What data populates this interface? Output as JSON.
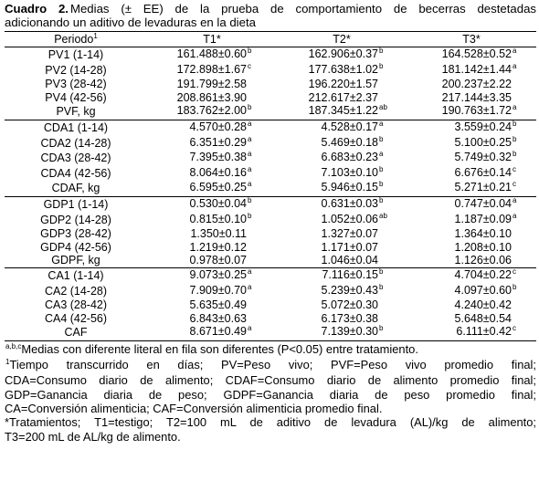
{
  "caption": {
    "label": "Cuadro 2.",
    "line1": "Medias (± EE) de la prueba de comportamiento de becerras destetadas",
    "line2": "adicionando un aditivo de levaduras en la dieta"
  },
  "table": {
    "headers": [
      {
        "text": "Periodo",
        "sup": "1"
      },
      {
        "text": "T1*",
        "sup": ""
      },
      {
        "text": "T2*",
        "sup": ""
      },
      {
        "text": "T3*",
        "sup": ""
      }
    ],
    "groups": [
      {
        "rows": [
          {
            "label": "PV1 (1-14)",
            "cells": [
              {
                "v": "161.488±0.60",
                "s": "b"
              },
              {
                "v": "162.906±0.37",
                "s": "b"
              },
              {
                "v": "164.528±0.52",
                "s": "a"
              }
            ]
          },
          {
            "label": "PV2 (14-28)",
            "cells": [
              {
                "v": "172.898±1.67",
                "s": "c"
              },
              {
                "v": "177.638±1.02",
                "s": "b"
              },
              {
                "v": "181.142±1.44",
                "s": "a"
              }
            ]
          },
          {
            "label": "PV3 (28-42)",
            "cells": [
              {
                "v": "191.799±2.58",
                "s": ""
              },
              {
                "v": "196.220±1.57",
                "s": ""
              },
              {
                "v": "200.237±2.22",
                "s": ""
              }
            ]
          },
          {
            "label": "PV4 (42-56)",
            "cells": [
              {
                "v": "208.861±3.90",
                "s": ""
              },
              {
                "v": "212.617±2.37",
                "s": ""
              },
              {
                "v": "217.144±3.35",
                "s": ""
              }
            ]
          },
          {
            "label": "PVF, kg",
            "cells": [
              {
                "v": "183.762±2.00",
                "s": "b"
              },
              {
                "v": "187.345±1.22",
                "s": "ab"
              },
              {
                "v": "190.763±1.72",
                "s": "a"
              }
            ]
          }
        ]
      },
      {
        "rows": [
          {
            "label": "CDA1 (1-14)",
            "cells": [
              {
                "v": "4.570±0.28",
                "s": "a"
              },
              {
                "v": "4.528±0.17",
                "s": "a"
              },
              {
                "v": "3.559±0.24",
                "s": "b"
              }
            ]
          },
          {
            "label": "CDA2 (14-28)",
            "cells": [
              {
                "v": "6.351±0.29",
                "s": "a"
              },
              {
                "v": "5.469±0.18",
                "s": "b"
              },
              {
                "v": "5.100±0.25",
                "s": "b"
              }
            ]
          },
          {
            "label": "CDA3 (28-42)",
            "cells": [
              {
                "v": "7.395±0.38",
                "s": "a"
              },
              {
                "v": "6.683±0.23",
                "s": "a"
              },
              {
                "v": "5.749±0.32",
                "s": "b"
              }
            ]
          },
          {
            "label": "CDA4 (42-56)",
            "cells": [
              {
                "v": "8.064±0.16",
                "s": "a"
              },
              {
                "v": "7.103±0.10",
                "s": "b"
              },
              {
                "v": "6.676±0.14",
                "s": "c"
              }
            ]
          },
          {
            "label": "CDAF, kg",
            "cells": [
              {
                "v": "6.595±0.25",
                "s": "a"
              },
              {
                "v": "5.946±0.15",
                "s": "b"
              },
              {
                "v": "5.271±0.21",
                "s": "c"
              }
            ]
          }
        ]
      },
      {
        "rows": [
          {
            "label": "GDP1 (1-14)",
            "cells": [
              {
                "v": "0.530±0.04",
                "s": "b"
              },
              {
                "v": "0.631±0.03",
                "s": "b"
              },
              {
                "v": "0.747±0.04",
                "s": "a"
              }
            ]
          },
          {
            "label": "GDP2 (14-28)",
            "cells": [
              {
                "v": "0.815±0.10",
                "s": "b"
              },
              {
                "v": "1.052±0.06",
                "s": "ab"
              },
              {
                "v": "1.187±0.09",
                "s": "a"
              }
            ]
          },
          {
            "label": "GDP3 (28-42)",
            "cells": [
              {
                "v": "1.350±0.11",
                "s": ""
              },
              {
                "v": "1.327±0.07",
                "s": ""
              },
              {
                "v": "1.364±0.10",
                "s": ""
              }
            ]
          },
          {
            "label": "GDP4 (42-56)",
            "cells": [
              {
                "v": "1.219±0.12",
                "s": ""
              },
              {
                "v": "1.171±0.07",
                "s": ""
              },
              {
                "v": "1.208±0.10",
                "s": ""
              }
            ]
          },
          {
            "label": "GDPF, kg",
            "cells": [
              {
                "v": "0.978±0.07",
                "s": ""
              },
              {
                "v": "1.046±0.04",
                "s": ""
              },
              {
                "v": "1.126±0.06",
                "s": ""
              }
            ]
          }
        ]
      },
      {
        "rows": [
          {
            "label": "CA1 (1-14)",
            "cells": [
              {
                "v": "9.073±0.25",
                "s": "a"
              },
              {
                "v": "7.116±0.15",
                "s": "b"
              },
              {
                "v": "4.704±0.22",
                "s": "c"
              }
            ]
          },
          {
            "label": "CA2 (14-28)",
            "cells": [
              {
                "v": "7.909±0.70",
                "s": "a"
              },
              {
                "v": "5.239±0.43",
                "s": "b"
              },
              {
                "v": "4.097±0.60",
                "s": "b"
              }
            ]
          },
          {
            "label": "CA3 (28-42)",
            "cells": [
              {
                "v": "5.635±0.49",
                "s": ""
              },
              {
                "v": "5.072±0.30",
                "s": ""
              },
              {
                "v": "4.240±0.42",
                "s": ""
              }
            ]
          },
          {
            "label": "CA4 (42-56)",
            "cells": [
              {
                "v": "6.843±0.63",
                "s": ""
              },
              {
                "v": "6.173±0.38",
                "s": ""
              },
              {
                "v": "5.648±0.54",
                "s": ""
              }
            ]
          },
          {
            "label": "CAF",
            "cells": [
              {
                "v": "8.671±0.49",
                "s": "a"
              },
              {
                "v": "7.139±0.30",
                "s": "b"
              },
              {
                "v": "6.111±0.42",
                "s": "c"
              }
            ]
          }
        ]
      }
    ]
  },
  "notes": {
    "abc_sup": "a,b,c",
    "abc_text": "Medias con diferente literal en fila son diferentes (P<0.05) entre tratamiento.",
    "fn1_sup": "1",
    "fn1_line1": "Tiempo transcurrido en días; PV=Peso vivo; PVF=Peso vivo promedio final;",
    "fn1_line2": "CDA=Consumo diario de alimento; CDAF=Consumo diario de alimento promedio final;",
    "fn1_line3": "GDP=Ganancia diaria de peso; GDPF=Ganancia diaria de peso promedio final;",
    "fn1_line4": "CA=Conversión alimenticia; CAF=Conversión alimenticia promedio final.",
    "trat_line1": "*Tratamientos; T1=testigo; T2=100 mL de aditivo de levadura (AL)/kg de alimento;",
    "trat_line2": "T3=200 mL de AL/kg de alimento."
  }
}
